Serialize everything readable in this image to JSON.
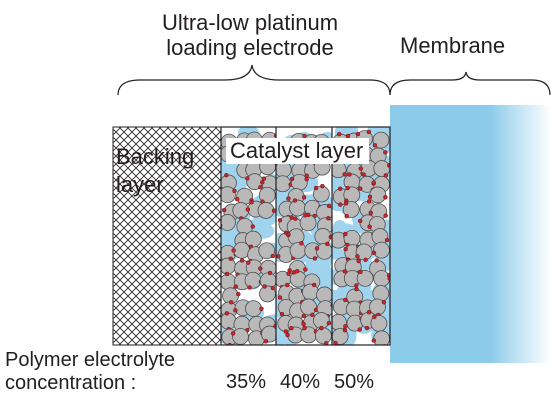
{
  "electrode": {
    "title_line1": "Ultra-low platinum",
    "title_line2": "loading electrode"
  },
  "membrane": {
    "label": "Membrane",
    "color": "#8ccbea"
  },
  "backing_layer": {
    "line1": "Backing",
    "line2": "layer"
  },
  "catalyst_layer": {
    "label": "Catalyst layer",
    "ionomer_color": "#9fd3ee",
    "carbon_color": "#b9b9b9",
    "platinum_color": "#c1272d"
  },
  "concentration": {
    "line1": "Polymer electrolyte",
    "line2": "concentration :",
    "values": [
      "35%",
      "40%",
      "50%"
    ]
  }
}
